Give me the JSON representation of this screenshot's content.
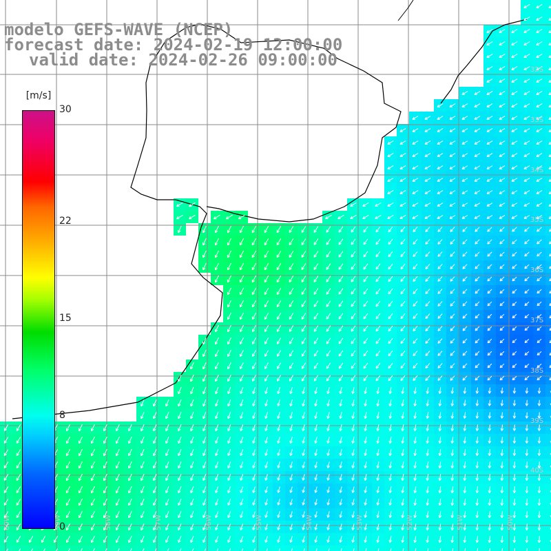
{
  "title": {
    "line1": "modelo GEFS-WAVE (NCEP)",
    "line2": "forecast date: 2024-02-19 12:00:00",
    "line3": "valid date: 2024-02-26 09:00:00"
  },
  "colorbar": {
    "unit": "[m/s]",
    "ticks": [
      "30",
      "22",
      "15",
      "8",
      "0"
    ],
    "tick_values": [
      30,
      22,
      15,
      8,
      0
    ],
    "range": [
      0,
      30
    ]
  },
  "latitude_labels": [
    "32S",
    "33S",
    "34S",
    "35S",
    "36S",
    "37S",
    "38S",
    "39S",
    "40S"
  ],
  "longitude_labels": [
    "60W",
    "59W",
    "58W",
    "57W",
    "56W",
    "55W",
    "54W",
    "53W",
    "52W",
    "51W",
    "50W"
  ],
  "colors": {
    "grid": "#8a8a8a",
    "coast": "#000000",
    "arrows": "#ffffff",
    "title_text": "#8c8c8c"
  }
}
